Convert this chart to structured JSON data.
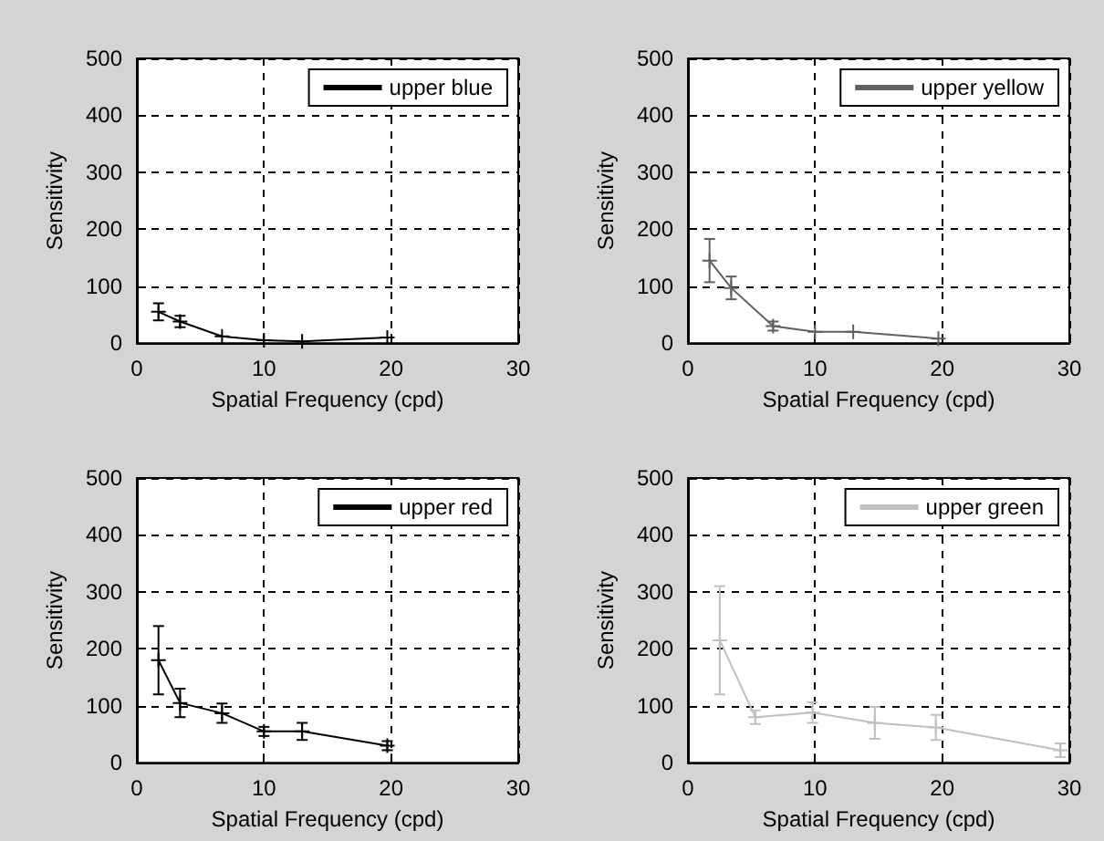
{
  "chart_data": [
    {
      "type": "line",
      "xlabel": "Spatial Frequency (cpd)",
      "ylabel": "Sensitivity",
      "xlim": [
        0,
        30
      ],
      "xticks": [
        0,
        10,
        20,
        30
      ],
      "ylim": [
        0,
        500
      ],
      "yticks": [
        0,
        100,
        200,
        300,
        400,
        500
      ],
      "grid": true,
      "legend": "top right",
      "marker": "cross",
      "line_style": "solid",
      "series": [
        {
          "name": "upper blue",
          "color": "#000000",
          "x": [
            1.7,
            3.4,
            6.7,
            10,
            13,
            19.7
          ],
          "values": [
            55,
            38,
            12,
            5,
            3,
            10
          ],
          "errors": [
            15,
            10,
            null,
            null,
            null,
            null
          ]
        }
      ]
    },
    {
      "type": "line",
      "xlabel": "Spatial Frequency (cpd)",
      "ylabel": "Sensitivity",
      "xlim": [
        0,
        30
      ],
      "xticks": [
        0,
        10,
        20,
        30
      ],
      "ylim": [
        0,
        500
      ],
      "yticks": [
        0,
        100,
        200,
        300,
        400,
        500
      ],
      "grid": true,
      "legend": "top right",
      "marker": "cross",
      "line_style": "solid",
      "series": [
        {
          "name": "upper yellow",
          "color": "#606060",
          "x": [
            1.7,
            3.4,
            6.7,
            10,
            13,
            19.7
          ],
          "values": [
            145,
            97,
            30,
            20,
            20,
            8
          ],
          "errors": [
            38,
            20,
            8,
            null,
            null,
            null
          ]
        }
      ]
    },
    {
      "type": "line",
      "xlabel": "Spatial Frequency (cpd)",
      "ylabel": "Sensitivity",
      "xlim": [
        0,
        30
      ],
      "xticks": [
        0,
        10,
        20,
        30
      ],
      "ylim": [
        0,
        500
      ],
      "yticks": [
        0,
        100,
        200,
        300,
        400,
        500
      ],
      "grid": true,
      "legend": "top right",
      "marker": "cross",
      "line_style": "solid",
      "series": [
        {
          "name": "upper red",
          "color": "#000000",
          "x": [
            1.7,
            3.4,
            6.7,
            10,
            13,
            19.7
          ],
          "values": [
            180,
            105,
            87,
            55,
            55,
            30
          ],
          "errors": [
            60,
            25,
            17,
            8,
            15,
            8
          ]
        }
      ]
    },
    {
      "type": "line",
      "xlabel": "Spatial Frequency (cpd)",
      "ylabel": "Sensitivity",
      "xlim": [
        0,
        30
      ],
      "xticks": [
        0,
        10,
        20,
        30
      ],
      "ylim": [
        0,
        500
      ],
      "yticks": [
        0,
        100,
        200,
        300,
        400,
        500
      ],
      "grid": true,
      "legend": "top right",
      "marker": "cross",
      "line_style": "solid",
      "series": [
        {
          "name": "upper green",
          "color": "#c0c0c0",
          "x": [
            2.5,
            5.3,
            9.8,
            14.7,
            19.5,
            29.3
          ],
          "values": [
            215,
            80,
            88,
            70,
            62,
            22
          ],
          "errors": [
            95,
            12,
            18,
            28,
            22,
            12
          ]
        }
      ]
    }
  ]
}
